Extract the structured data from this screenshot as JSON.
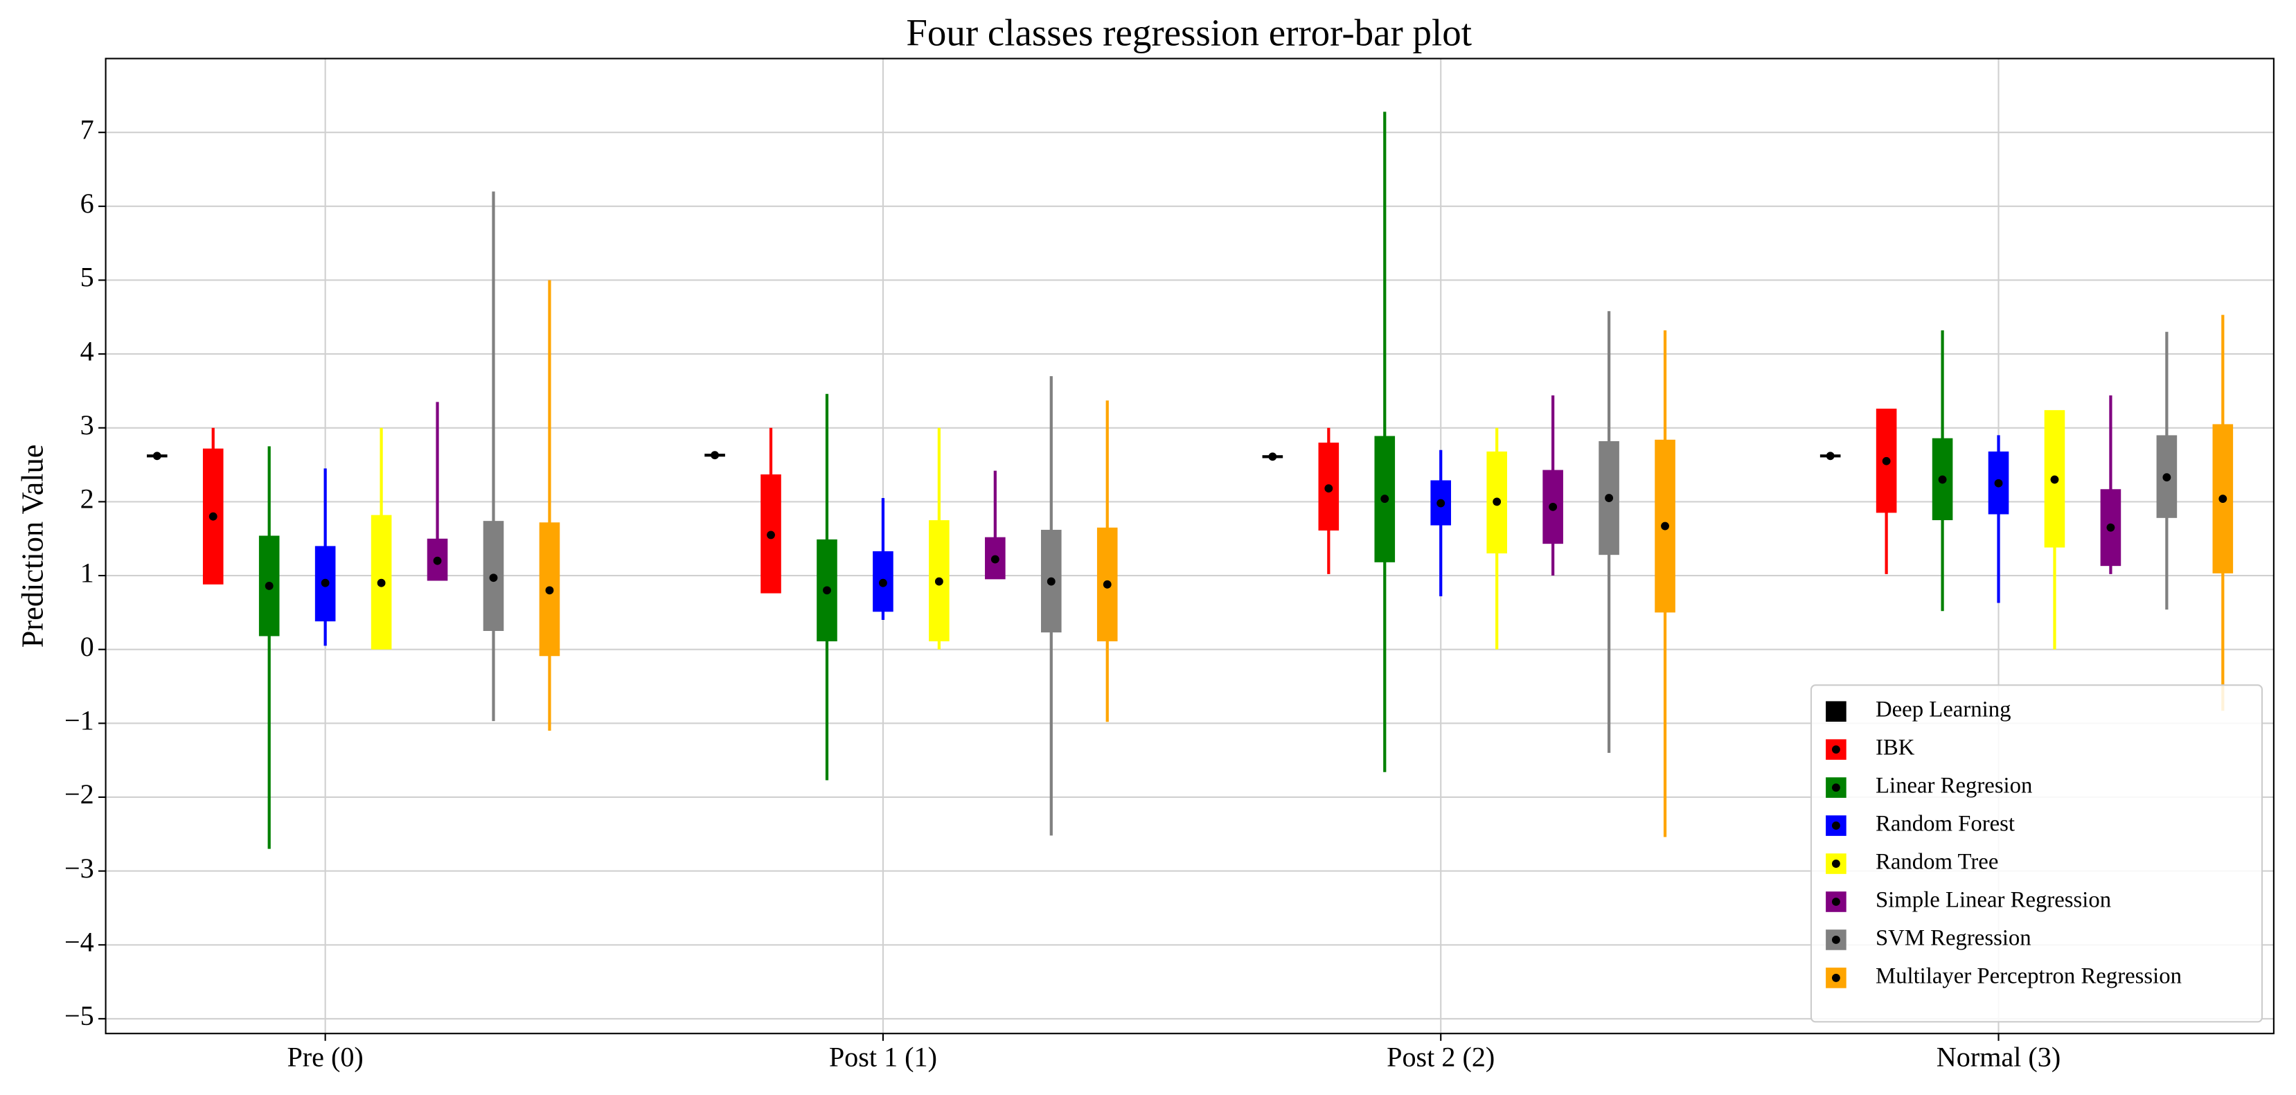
{
  "chart_data": {
    "type": "errorbar",
    "title": "Four classes regression error-bar plot",
    "y_label": "Prediction Value",
    "categories": [
      "Pre (0)",
      "Post 1 (1)",
      "Post 2 (2)",
      "Normal (3)"
    ],
    "ylim": [
      -5.2,
      8.0
    ],
    "yticks": [
      {
        "value": -5,
        "label": "−5"
      },
      {
        "value": -4,
        "label": "−4"
      },
      {
        "value": -3,
        "label": "−3"
      },
      {
        "value": -2,
        "label": "−2"
      },
      {
        "value": -1,
        "label": "−1"
      },
      0,
      1,
      2,
      3,
      4,
      5,
      6,
      7
    ],
    "grid": true,
    "legend": "lower right",
    "series": [
      {
        "name": "Deep Learning",
        "color": "#000000",
        "values": [
          2.62,
          2.63,
          2.61,
          2.62
        ],
        "box_low": [
          2.62,
          2.63,
          2.61,
          2.62
        ],
        "box_high": [
          2.62,
          2.63,
          2.61,
          2.62
        ],
        "whisker_low": [
          2.62,
          2.63,
          2.61,
          2.62
        ],
        "whisker_high": [
          2.62,
          2.63,
          2.61,
          2.62
        ]
      },
      {
        "name": "IBK",
        "color": "#ff0000",
        "values": [
          1.8,
          1.55,
          2.18,
          2.55
        ],
        "box_low": [
          0.9,
          0.78,
          1.63,
          1.87
        ],
        "box_high": [
          2.7,
          2.35,
          2.78,
          3.24
        ],
        "whisker_low": [
          0.9,
          0.78,
          1.02,
          1.02
        ],
        "whisker_high": [
          3.0,
          3.0,
          3.0,
          3.0
        ]
      },
      {
        "name": "Linear Regresion",
        "color": "#008000",
        "values": [
          0.86,
          0.8,
          2.04,
          2.3
        ],
        "box_low": [
          0.2,
          0.13,
          1.2,
          1.77
        ],
        "box_high": [
          1.52,
          1.47,
          2.87,
          2.84
        ],
        "whisker_low": [
          -2.7,
          -1.77,
          -1.66,
          0.52
        ],
        "whisker_high": [
          2.75,
          3.46,
          7.28,
          4.32
        ]
      },
      {
        "name": "Random Forest",
        "color": "#0000ff",
        "values": [
          0.9,
          0.9,
          1.98,
          2.25
        ],
        "box_low": [
          0.4,
          0.53,
          1.7,
          1.85
        ],
        "box_high": [
          1.38,
          1.31,
          2.27,
          2.66
        ],
        "whisker_low": [
          0.05,
          0.4,
          0.72,
          0.63
        ],
        "whisker_high": [
          2.45,
          2.05,
          2.7,
          2.9
        ]
      },
      {
        "name": "Random Tree",
        "color": "#ffff00",
        "values": [
          0.9,
          0.92,
          2.0,
          2.3
        ],
        "box_low": [
          0.02,
          0.13,
          1.32,
          1.4
        ],
        "box_high": [
          1.8,
          1.73,
          2.66,
          3.22
        ],
        "whisker_low": [
          0,
          0,
          0,
          0
        ],
        "whisker_high": [
          3.0,
          3.0,
          3.0,
          3.0
        ]
      },
      {
        "name": "Simple Linear Regression",
        "color": "#800080",
        "values": [
          1.2,
          1.22,
          1.93,
          1.65
        ],
        "box_low": [
          0.95,
          0.97,
          1.45,
          1.15
        ],
        "box_high": [
          1.48,
          1.5,
          2.41,
          2.15
        ],
        "whisker_low": [
          0.95,
          0.97,
          1.0,
          1.02
        ],
        "whisker_high": [
          3.35,
          2.42,
          3.44,
          3.44
        ]
      },
      {
        "name": "SVM Regression",
        "color": "#808080",
        "values": [
          0.97,
          0.92,
          2.05,
          2.33
        ],
        "box_low": [
          0.27,
          0.25,
          1.3,
          1.8
        ],
        "box_high": [
          1.72,
          1.6,
          2.8,
          2.88
        ],
        "whisker_low": [
          -0.97,
          -2.52,
          -1.4,
          0.54
        ],
        "whisker_high": [
          6.2,
          3.7,
          4.58,
          4.3
        ]
      },
      {
        "name": "Multilayer Perceptron Regression",
        "color": "#ffa500",
        "values": [
          0.8,
          0.88,
          1.67,
          2.04
        ],
        "box_low": [
          -0.07,
          0.13,
          0.52,
          1.05
        ],
        "box_high": [
          1.7,
          1.63,
          2.82,
          3.03
        ],
        "whisker_low": [
          -1.1,
          -0.98,
          -2.54,
          -0.83
        ],
        "whisker_high": [
          5.0,
          3.37,
          4.32,
          4.53
        ]
      }
    ]
  }
}
